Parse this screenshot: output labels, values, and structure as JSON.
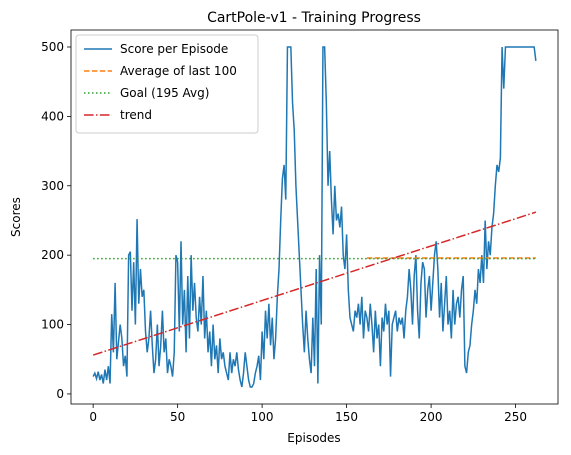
{
  "chart_data": {
    "type": "line",
    "title": "CartPole-v1 - Training Progress",
    "xlabel": "Episodes",
    "ylabel": "Scores",
    "xlim": [
      -13.1,
      275.1
    ],
    "xticks": [
      0,
      50,
      100,
      150,
      200,
      250
    ],
    "ylim": [
      -14.5,
      524.5
    ],
    "yticks": [
      0,
      100,
      200,
      300,
      400,
      500
    ],
    "legend": "upper left",
    "series": [
      {
        "name": "Score per Episode",
        "color": "#1f77b4",
        "linestyle": "solid",
        "values": [
          25,
          30,
          22,
          32,
          20,
          28,
          15,
          35,
          20,
          40,
          15,
          115,
          60,
          160,
          50,
          75,
          100,
          80,
          40,
          55,
          25,
          200,
          205,
          120,
          190,
          100,
          252,
          130,
          180,
          140,
          150,
          90,
          60,
          80,
          120,
          70,
          30,
          50,
          100,
          40,
          70,
          120,
          60,
          80,
          30,
          50,
          40,
          25,
          60,
          200,
          190,
          90,
          220,
          100,
          150,
          60,
          170,
          80,
          200,
          120,
          160,
          110,
          90,
          140,
          100,
          170,
          80,
          120,
          60,
          90,
          40,
          100,
          50,
          70,
          30,
          80,
          50,
          60,
          40,
          30,
          20,
          60,
          30,
          50,
          40,
          60,
          35,
          20,
          10,
          30,
          60,
          40,
          20,
          10,
          10,
          15,
          30,
          40,
          55,
          20,
          90,
          50,
          120,
          80,
          130,
          70,
          110,
          50,
          80,
          140,
          180,
          250,
          310,
          330,
          280,
          500,
          500,
          500,
          420,
          380,
          300,
          250,
          200,
          150,
          100,
          60,
          120,
          80,
          50,
          30,
          110,
          40,
          180,
          15,
          200,
          100,
          500,
          500,
          420,
          300,
          350,
          280,
          230,
          300,
          250,
          260,
          240,
          270,
          200,
          180,
          230,
          150,
          110,
          100,
          90,
          120,
          110,
          130,
          100,
          140,
          80,
          120,
          110,
          90,
          130,
          100,
          60,
          120,
          80,
          100,
          40,
          110,
          90,
          130,
          100,
          120,
          25,
          100,
          110,
          120,
          90,
          110,
          100,
          110,
          80,
          120,
          140,
          180,
          150,
          100,
          170,
          200,
          120,
          80,
          160,
          190,
          180,
          110,
          150,
          170,
          120,
          160,
          200,
          220,
          180,
          110,
          160,
          90,
          130,
          170,
          100,
          120,
          80,
          150,
          100,
          130,
          140,
          110,
          150,
          170,
          40,
          30,
          60,
          70,
          100,
          120,
          150,
          130,
          180,
          160,
          200,
          160,
          250,
          180,
          220,
          200,
          240,
          260,
          300,
          330,
          320,
          340,
          500,
          440,
          500,
          500,
          500,
          500,
          500,
          500,
          500,
          500,
          500,
          500,
          500,
          500,
          500,
          500,
          500,
          500,
          500,
          500,
          480
        ]
      },
      {
        "name": "Average of last 100",
        "color": "#ff7f0e",
        "linestyle": "dashed",
        "x": [
          162,
          262
        ],
        "values": [
          196,
          196
        ]
      },
      {
        "name": "Goal (195 Avg)",
        "color": "#2ca02c",
        "linestyle": "dotted",
        "x": [
          0,
          262
        ],
        "values": [
          195,
          195
        ]
      },
      {
        "name": "trend",
        "color": "#d62728",
        "linestyle": "dashdot",
        "x": [
          0,
          262
        ],
        "values": [
          56,
          262
        ]
      }
    ]
  }
}
